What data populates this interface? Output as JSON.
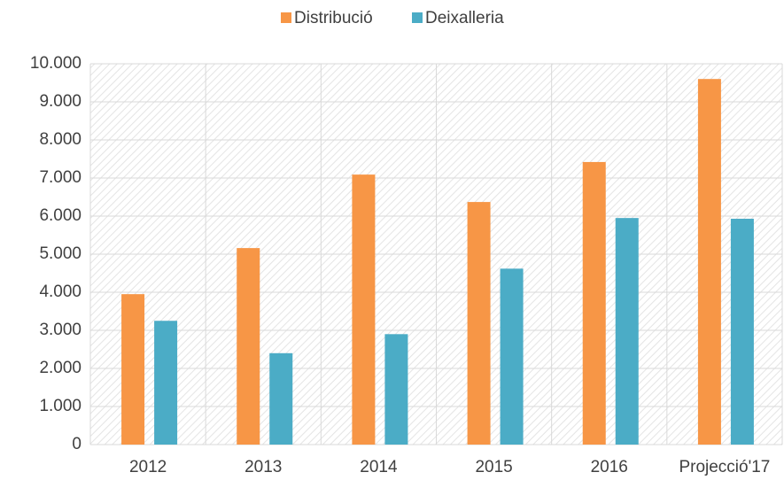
{
  "chart_data": {
    "type": "bar",
    "categories": [
      "2012",
      "2013",
      "2014",
      "2015",
      "2016",
      "Projecció'17"
    ],
    "series": [
      {
        "name": "Distribució",
        "color": "#f79646",
        "values": [
          3950,
          5160,
          7090,
          6370,
          7420,
          9600
        ]
      },
      {
        "name": "Deixalleria",
        "color": "#4bacc6",
        "values": [
          3250,
          2400,
          2900,
          4620,
          5950,
          5930
        ]
      }
    ],
    "ylim": [
      0,
      10000
    ],
    "yticks": [
      0,
      {
        "value": 1000,
        "label": "1.000"
      },
      {
        "value": 2000,
        "label": "2.000"
      },
      {
        "value": 3000,
        "label": "3.000"
      },
      {
        "value": 4000,
        "label": "4.000"
      },
      {
        "value": 5000,
        "label": "5.000"
      },
      {
        "value": 6000,
        "label": "6.000"
      },
      {
        "value": 7000,
        "label": "7.000"
      },
      {
        "value": 8000,
        "label": "8.000"
      },
      {
        "value": 9000,
        "label": "9.000"
      },
      {
        "value": 10000,
        "label": "10.000"
      }
    ],
    "grid": true,
    "legend": "top"
  }
}
